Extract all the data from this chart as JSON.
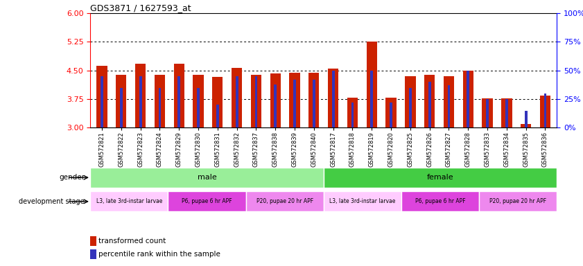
{
  "title": "GDS3871 / 1627593_at",
  "samples": [
    "GSM572821",
    "GSM572822",
    "GSM572823",
    "GSM572824",
    "GSM572829",
    "GSM572830",
    "GSM572831",
    "GSM572832",
    "GSM572837",
    "GSM572838",
    "GSM572839",
    "GSM572840",
    "GSM572817",
    "GSM572818",
    "GSM572819",
    "GSM572820",
    "GSM572825",
    "GSM572826",
    "GSM572827",
    "GSM572828",
    "GSM572833",
    "GSM572834",
    "GSM572835",
    "GSM572836"
  ],
  "transformed_count": [
    4.62,
    4.38,
    4.68,
    4.38,
    4.68,
    4.38,
    4.34,
    4.56,
    4.38,
    4.42,
    4.44,
    4.44,
    4.55,
    3.78,
    5.25,
    3.78,
    4.35,
    4.38,
    4.35,
    4.5,
    3.77,
    3.77,
    3.1,
    3.84
  ],
  "percentile_rank": [
    45,
    35,
    45,
    35,
    45,
    35,
    20,
    45,
    45,
    38,
    42,
    42,
    50,
    22,
    50,
    22,
    35,
    40,
    37,
    50,
    25,
    25,
    15,
    30
  ],
  "ymin": 3.0,
  "ymax": 6.0,
  "yticks_left": [
    3.0,
    3.75,
    4.5,
    5.25,
    6.0
  ],
  "yticks_right": [
    0,
    25,
    50,
    75,
    100
  ],
  "bar_color": "#cc2200",
  "percentile_color": "#3333bb",
  "gender_row": [
    {
      "label": "male",
      "start": 0,
      "end": 12,
      "color": "#99ee99"
    },
    {
      "label": "female",
      "start": 12,
      "end": 24,
      "color": "#44cc44"
    }
  ],
  "dev_stage_row": [
    {
      "label": "L3, late 3rd-instar larvae",
      "start": 0,
      "end": 4,
      "color": "#ffccff"
    },
    {
      "label": "P6, pupae 6 hr APF",
      "start": 4,
      "end": 8,
      "color": "#dd44dd"
    },
    {
      "label": "P20, pupae 20 hr APF",
      "start": 8,
      "end": 12,
      "color": "#ee88ee"
    },
    {
      "label": "L3, late 3rd-instar larvae",
      "start": 12,
      "end": 16,
      "color": "#ffccff"
    },
    {
      "label": "P6, pupae 6 hr APF",
      "start": 16,
      "end": 20,
      "color": "#dd44dd"
    },
    {
      "label": "P20, pupae 20 hr APF",
      "start": 20,
      "end": 24,
      "color": "#ee88ee"
    }
  ],
  "gender_label": "gender",
  "dev_stage_label": "development stage",
  "legend_items": [
    {
      "label": "transformed count",
      "color": "#cc2200"
    },
    {
      "label": "percentile rank within the sample",
      "color": "#3333bb"
    }
  ]
}
